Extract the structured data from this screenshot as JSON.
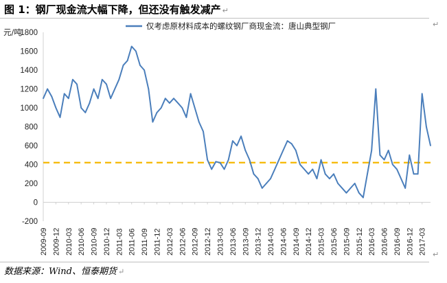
{
  "figure": {
    "title": "图 1：钢厂现金流大幅下降，但还没有触发减产",
    "source": "数据来源：Wind、恒泰期货",
    "paragraph_mark": "↵"
  },
  "chart_data": {
    "type": "line",
    "ylabel": "元/吨",
    "ylim": [
      -200,
      1800
    ],
    "yticks": [
      -200,
      0,
      200,
      400,
      600,
      800,
      1000,
      1200,
      1400,
      1600,
      1800
    ],
    "x_range": [
      "2009-09",
      "2017-05"
    ],
    "xtick_labels": [
      "2009-09",
      "2009-12",
      "2010-03",
      "2010-06",
      "2010-09",
      "2010-12",
      "2011-03",
      "2011-06",
      "2011-09",
      "2011-12",
      "2012-03",
      "2012-06",
      "2012-09",
      "2012-12",
      "2013-03",
      "2013-06",
      "2013-09",
      "2013-12",
      "2014-03",
      "2014-06",
      "2014-09",
      "2014-12",
      "2015-03",
      "2015-06",
      "2015-09",
      "2015-12",
      "2016-03",
      "2016-06",
      "2016-09",
      "2016-12",
      "2017-03"
    ],
    "legend": {
      "position": "top",
      "entries": [
        "仅考虑原材料成本的螺纹钢厂商现金流：唐山典型钢厂"
      ]
    },
    "reference_line": {
      "value": 420,
      "style": "dashed",
      "color": "#f5b800"
    },
    "series": [
      {
        "name": "仅考虑原材料成本的螺纹钢厂商现金流：唐山典型钢厂",
        "color": "#4a7ebb",
        "x": [
          "2009-09",
          "2009-10",
          "2009-11",
          "2009-12",
          "2010-01",
          "2010-02",
          "2010-03",
          "2010-04",
          "2010-05",
          "2010-06",
          "2010-07",
          "2010-08",
          "2010-09",
          "2010-10",
          "2010-11",
          "2010-12",
          "2011-01",
          "2011-02",
          "2011-03",
          "2011-04",
          "2011-05",
          "2011-06",
          "2011-07",
          "2011-08",
          "2011-09",
          "2011-10",
          "2011-11",
          "2011-12",
          "2012-01",
          "2012-02",
          "2012-03",
          "2012-04",
          "2012-05",
          "2012-06",
          "2012-07",
          "2012-08",
          "2012-09",
          "2012-10",
          "2012-11",
          "2012-12",
          "2013-01",
          "2013-02",
          "2013-03",
          "2013-04",
          "2013-05",
          "2013-06",
          "2013-07",
          "2013-08",
          "2013-09",
          "2013-10",
          "2013-11",
          "2013-12",
          "2014-01",
          "2014-02",
          "2014-03",
          "2014-04",
          "2014-05",
          "2014-06",
          "2014-07",
          "2014-08",
          "2014-09",
          "2014-10",
          "2014-11",
          "2014-12",
          "2015-01",
          "2015-02",
          "2015-03",
          "2015-04",
          "2015-05",
          "2015-06",
          "2015-07",
          "2015-08",
          "2015-09",
          "2015-10",
          "2015-11",
          "2015-12",
          "2016-01",
          "2016-02",
          "2016-03",
          "2016-04",
          "2016-05",
          "2016-06",
          "2016-07",
          "2016-08",
          "2016-09",
          "2016-10",
          "2016-11",
          "2016-12",
          "2017-01",
          "2017-02",
          "2017-03",
          "2017-04",
          "2017-05"
        ],
        "values": [
          1100,
          1200,
          1120,
          1000,
          900,
          1150,
          1100,
          1300,
          1250,
          1000,
          950,
          1050,
          1200,
          1100,
          1300,
          1250,
          1100,
          1200,
          1300,
          1450,
          1500,
          1650,
          1600,
          1450,
          1400,
          1200,
          850,
          950,
          1000,
          1100,
          1050,
          1100,
          1050,
          1000,
          900,
          1150,
          1000,
          850,
          750,
          450,
          350,
          430,
          420,
          350,
          450,
          650,
          600,
          700,
          550,
          450,
          300,
          250,
          150,
          200,
          250,
          350,
          450,
          550,
          650,
          620,
          550,
          400,
          350,
          300,
          350,
          250,
          450,
          300,
          250,
          300,
          200,
          150,
          100,
          150,
          200,
          100,
          50,
          300,
          550,
          1200,
          500,
          450,
          550,
          400,
          350,
          250,
          150,
          500,
          300,
          300,
          1150,
          800,
          600
        ]
      }
    ]
  }
}
